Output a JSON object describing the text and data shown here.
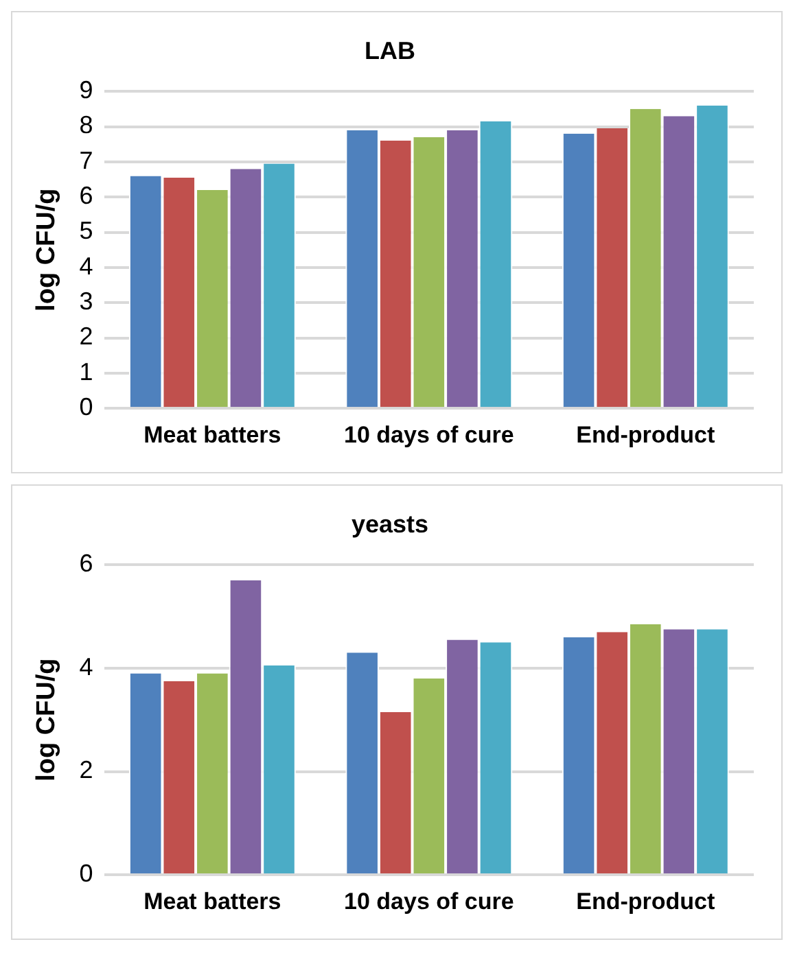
{
  "chart_data": [
    {
      "type": "bar",
      "title": "LAB",
      "ylabel": "log CFU/g",
      "categories": [
        "Meat batters",
        "10 days of cure",
        "End-product"
      ],
      "series": [
        {
          "color": "#4f81bd",
          "values": [
            6.6,
            7.9,
            7.8
          ]
        },
        {
          "color": "#c0504d",
          "values": [
            6.55,
            7.6,
            7.95
          ]
        },
        {
          "color": "#9bbb59",
          "values": [
            6.2,
            7.7,
            8.5
          ]
        },
        {
          "color": "#8064a2",
          "values": [
            6.8,
            7.9,
            8.3
          ]
        },
        {
          "color": "#4bacc6",
          "values": [
            6.95,
            8.15,
            8.6
          ]
        }
      ],
      "ylim": [
        0,
        9
      ],
      "yticks": [
        0,
        1,
        2,
        3,
        4,
        5,
        6,
        7,
        8,
        9
      ],
      "grid": "y",
      "legend": false
    },
    {
      "type": "bar",
      "title": "yeasts",
      "ylabel": "log CFU/g",
      "categories": [
        "Meat batters",
        "10 days of cure",
        "End-product"
      ],
      "series": [
        {
          "color": "#4f81bd",
          "values": [
            3.9,
            4.3,
            4.6
          ]
        },
        {
          "color": "#c0504d",
          "values": [
            3.75,
            3.15,
            4.7
          ]
        },
        {
          "color": "#9bbb59",
          "values": [
            3.9,
            3.8,
            4.85
          ]
        },
        {
          "color": "#8064a2",
          "values": [
            5.7,
            4.55,
            4.75
          ]
        },
        {
          "color": "#4bacc6",
          "values": [
            4.05,
            4.5,
            4.75
          ]
        }
      ],
      "ylim": [
        0,
        6
      ],
      "yticks": [
        0,
        2,
        4,
        6
      ],
      "grid": "y",
      "legend": false
    }
  ]
}
